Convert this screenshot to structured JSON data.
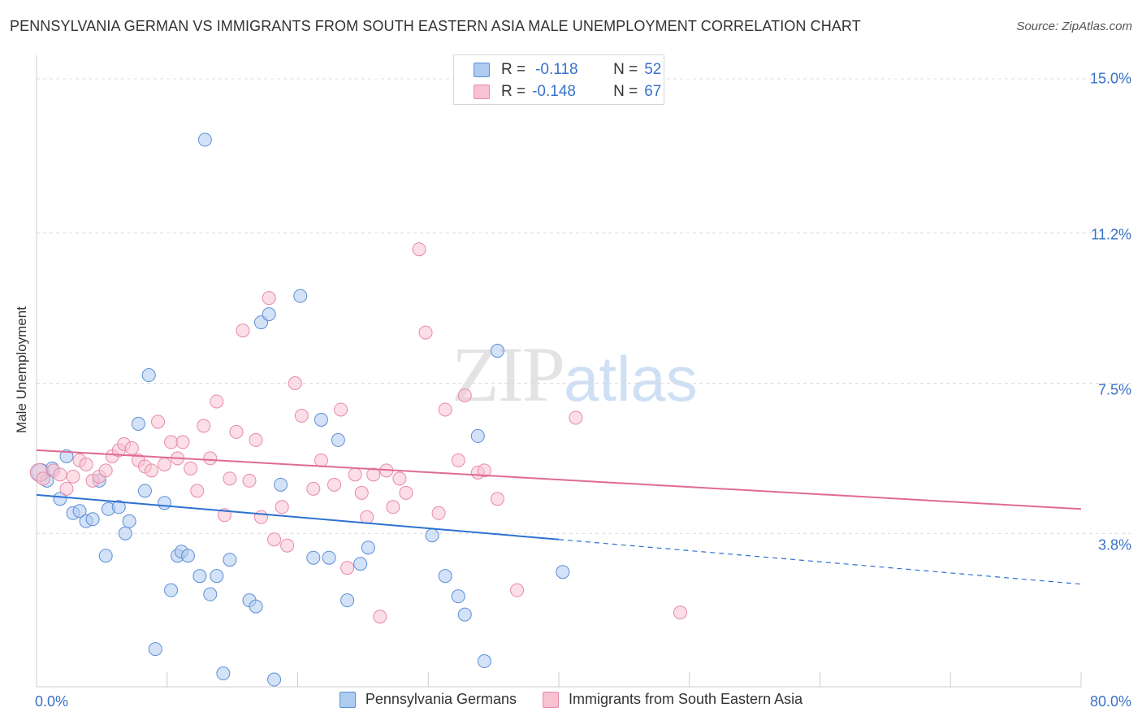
{
  "title": "PENNSYLVANIA GERMAN VS IMMIGRANTS FROM SOUTH EASTERN ASIA MALE UNEMPLOYMENT CORRELATION CHART",
  "source": "Source: ZipAtlas.com",
  "watermark": {
    "zip": "ZIP",
    "atlas": "atlas"
  },
  "colors": {
    "blue_fill": "#aecbf0",
    "blue_stroke": "#5b8fd6",
    "blue_line": "#2d72d2",
    "pink_fill": "#f8c2d2",
    "pink_stroke": "#e88aa8",
    "pink_line": "#e06b92",
    "tick_text": "#3a72c8",
    "grid": "#dcdcdc"
  },
  "legend_top": [
    {
      "r_label": "R =",
      "r_value": "-0.118",
      "n_label": "N =",
      "n_value": "52",
      "series": "blue"
    },
    {
      "r_label": "R =",
      "r_value": "-0.148",
      "n_label": "N =",
      "n_value": "67",
      "series": "pink"
    }
  ],
  "chart_data": {
    "type": "scatter",
    "title": "PENNSYLVANIA GERMAN VS IMMIGRANTS FROM SOUTH EASTERN ASIA MALE UNEMPLOYMENT CORRELATION CHART",
    "xlabel": "",
    "ylabel": "Male Unemployment",
    "xlim": [
      0,
      80
    ],
    "ylim": [
      0,
      15.5
    ],
    "x_tick_labels": [
      "0.0%",
      "80.0%"
    ],
    "y_ticks": [
      3.8,
      7.5,
      11.2,
      15.0
    ],
    "y_tick_labels": [
      "3.8%",
      "7.5%",
      "11.2%",
      "15.0%"
    ],
    "grid": true,
    "legend": "bottom-center",
    "series": [
      {
        "name": "Pennsylvania Germans",
        "color": "blue",
        "trend": {
          "x0": 0,
          "y0": 4.75,
          "x1": 40,
          "y1": 3.65,
          "dash_x1": 80,
          "dash_y1": 2.55
        },
        "points": [
          [
            0.3,
            5.3
          ],
          [
            0.8,
            5.1
          ],
          [
            1.2,
            5.4
          ],
          [
            2.3,
            5.7
          ],
          [
            1.8,
            4.65
          ],
          [
            2.8,
            4.3
          ],
          [
            3.3,
            4.35
          ],
          [
            3.8,
            4.1
          ],
          [
            4.3,
            4.15
          ],
          [
            4.8,
            5.1
          ],
          [
            5.3,
            3.25
          ],
          [
            5.5,
            4.4
          ],
          [
            6.3,
            4.45
          ],
          [
            6.8,
            3.8
          ],
          [
            7.1,
            4.1
          ],
          [
            7.8,
            6.5
          ],
          [
            8.3,
            4.85
          ],
          [
            8.6,
            7.7
          ],
          [
            9.1,
            0.95
          ],
          [
            9.8,
            4.55
          ],
          [
            10.3,
            2.4
          ],
          [
            10.8,
            3.25
          ],
          [
            11.1,
            3.35
          ],
          [
            11.6,
            3.25
          ],
          [
            12.5,
            2.75
          ],
          [
            12.9,
            13.5
          ],
          [
            13.3,
            2.3
          ],
          [
            13.8,
            2.75
          ],
          [
            14.3,
            0.35
          ],
          [
            14.8,
            3.15
          ],
          [
            16.3,
            2.15
          ],
          [
            16.8,
            2.0
          ],
          [
            17.2,
            9.0
          ],
          [
            17.8,
            9.2
          ],
          [
            18.2,
            0.2
          ],
          [
            18.7,
            5.0
          ],
          [
            20.2,
            9.65
          ],
          [
            21.2,
            3.2
          ],
          [
            21.8,
            6.6
          ],
          [
            22.4,
            3.2
          ],
          [
            23.1,
            6.1
          ],
          [
            23.8,
            2.15
          ],
          [
            24.8,
            3.05
          ],
          [
            25.4,
            3.45
          ],
          [
            30.3,
            3.75
          ],
          [
            31.3,
            2.75
          ],
          [
            32.3,
            2.25
          ],
          [
            32.8,
            1.8
          ],
          [
            33.8,
            6.2
          ],
          [
            34.3,
            0.65
          ],
          [
            35.3,
            8.3
          ],
          [
            40.3,
            2.85
          ]
        ]
      },
      {
        "name": "Immigrants from South Eastern Asia",
        "color": "pink",
        "trend": {
          "x0": 0,
          "y0": 5.85,
          "x1": 80,
          "y1": 4.4
        },
        "points": [
          [
            0.2,
            5.3
          ],
          [
            1.3,
            5.35
          ],
          [
            1.8,
            5.25
          ],
          [
            2.3,
            4.9
          ],
          [
            2.8,
            5.2
          ],
          [
            3.3,
            5.6
          ],
          [
            3.8,
            5.5
          ],
          [
            4.3,
            5.1
          ],
          [
            4.8,
            5.2
          ],
          [
            5.3,
            5.35
          ],
          [
            5.8,
            5.7
          ],
          [
            6.3,
            5.85
          ],
          [
            6.7,
            6.0
          ],
          [
            7.3,
            5.9
          ],
          [
            7.8,
            5.6
          ],
          [
            8.3,
            5.45
          ],
          [
            8.8,
            5.35
          ],
          [
            9.3,
            6.55
          ],
          [
            9.8,
            5.5
          ],
          [
            10.3,
            6.05
          ],
          [
            10.8,
            5.65
          ],
          [
            11.2,
            6.05
          ],
          [
            11.8,
            5.4
          ],
          [
            12.3,
            4.85
          ],
          [
            12.8,
            6.45
          ],
          [
            13.3,
            5.65
          ],
          [
            13.8,
            7.05
          ],
          [
            14.4,
            4.25
          ],
          [
            14.8,
            5.15
          ],
          [
            15.3,
            6.3
          ],
          [
            15.8,
            8.8
          ],
          [
            16.3,
            5.1
          ],
          [
            16.8,
            6.1
          ],
          [
            17.2,
            4.2
          ],
          [
            17.8,
            9.6
          ],
          [
            18.2,
            3.65
          ],
          [
            18.8,
            4.45
          ],
          [
            19.2,
            3.5
          ],
          [
            19.8,
            7.5
          ],
          [
            20.3,
            6.7
          ],
          [
            21.2,
            4.9
          ],
          [
            21.8,
            5.6
          ],
          [
            22.8,
            5.0
          ],
          [
            23.3,
            6.85
          ],
          [
            23.8,
            2.95
          ],
          [
            24.4,
            5.25
          ],
          [
            24.9,
            4.8
          ],
          [
            25.3,
            4.2
          ],
          [
            25.8,
            5.25
          ],
          [
            26.3,
            1.75
          ],
          [
            26.8,
            5.35
          ],
          [
            27.3,
            4.45
          ],
          [
            27.8,
            5.15
          ],
          [
            28.3,
            4.8
          ],
          [
            29.3,
            10.8
          ],
          [
            29.8,
            8.75
          ],
          [
            30.8,
            4.3
          ],
          [
            31.3,
            6.85
          ],
          [
            32.3,
            5.6
          ],
          [
            32.8,
            7.2
          ],
          [
            33.8,
            5.3
          ],
          [
            34.3,
            5.35
          ],
          [
            35.3,
            4.65
          ],
          [
            36.8,
            2.4
          ],
          [
            41.3,
            6.65
          ],
          [
            49.3,
            1.85
          ],
          [
            0.5,
            5.15
          ]
        ]
      }
    ]
  },
  "legend_bottom": [
    {
      "label": "Pennsylvania Germans",
      "series": "blue"
    },
    {
      "label": "Immigrants from South Eastern Asia",
      "series": "pink"
    }
  ]
}
